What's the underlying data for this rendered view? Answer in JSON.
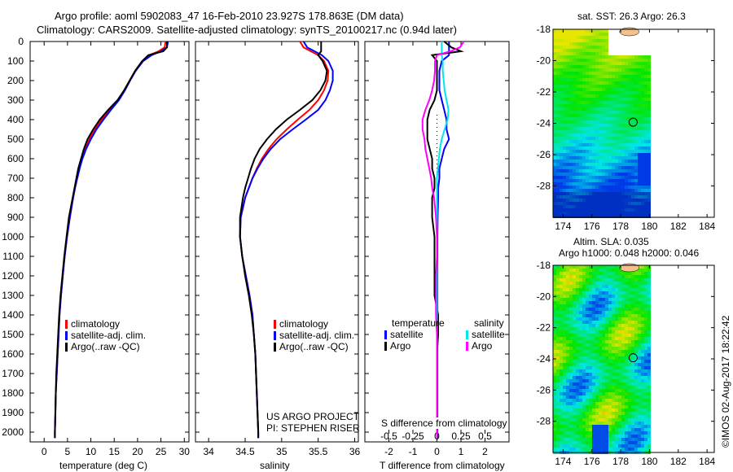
{
  "title": {
    "line1": "Argo profile: aoml 5902083_47 16-Feb-2010 23.927S 178.863E (DM data)",
    "line2": "Climatology: CARS2009. Satellite-adjusted climatology: synTS_20100217.nc (0.94d later)"
  },
  "colors": {
    "climatology": "#ff0000",
    "satellite": "#0000ff",
    "argo": "#000000",
    "sal_satellite": "#00e5ee",
    "sal_argo": "#ff00ff"
  },
  "legend_profile": [
    "climatology",
    "satellite-adj. clim.",
    "Argo(..raw -QC)"
  ],
  "legend_diff": {
    "temperature": "temperature",
    "salinity": "salinity",
    "satellite": "satellite",
    "argo": "Argo"
  },
  "project": {
    "line1": "US ARGO PROJECT",
    "line2": "PI: STEPHEN RISER"
  },
  "copyright": "©IMOS 02-Aug-2017 18:22:42",
  "chart_data": [
    {
      "type": "line",
      "title": "",
      "xlabel": "temperature (deg C)",
      "ylabel": "",
      "xlim": [
        -3,
        31
      ],
      "ylim": [
        2050,
        0
      ],
      "xticks": [
        "0",
        "5",
        "10",
        "15",
        "20",
        "25",
        "30"
      ],
      "yticks": [
        "0",
        "100",
        "200",
        "300",
        "400",
        "500",
        "600",
        "700",
        "800",
        "900",
        "1000",
        "1100",
        "1200",
        "1300",
        "1400",
        "1500",
        "1600",
        "1700",
        "1800",
        "1900",
        "2000"
      ],
      "depth": [
        0,
        30,
        50,
        70,
        100,
        150,
        200,
        250,
        300,
        350,
        400,
        450,
        500,
        550,
        600,
        650,
        700,
        750,
        800,
        900,
        1000,
        1100,
        1200,
        1300,
        1400,
        1500,
        1600,
        1700,
        1800,
        1900,
        2000,
        2030
      ],
      "series": [
        {
          "name": "climatology",
          "values": [
            26.0,
            25.8,
            24.5,
            22.5,
            21.0,
            19.5,
            18.3,
            17.2,
            15.8,
            14.0,
            12.3,
            10.9,
            9.7,
            8.8,
            8.1,
            7.5,
            7.0,
            6.6,
            6.2,
            5.5,
            4.9,
            4.4,
            4.0,
            3.6,
            3.3,
            3.1,
            2.9,
            2.7,
            2.5,
            2.4,
            2.3,
            2.3
          ]
        },
        {
          "name": "satellite-adj. clim.",
          "values": [
            26.5,
            26.3,
            25.0,
            23.0,
            21.2,
            19.6,
            18.4,
            17.3,
            16.0,
            14.3,
            12.7,
            11.2,
            10.0,
            9.0,
            8.2,
            7.6,
            7.1,
            6.6,
            6.2,
            5.5,
            4.9,
            4.4,
            4.0,
            3.6,
            3.3,
            3.1,
            2.9,
            2.7,
            2.5,
            2.4,
            2.3,
            2.3
          ]
        },
        {
          "name": "Argo(..raw -QC)",
          "values": [
            26.3,
            26.3,
            25.5,
            22.3,
            21.0,
            19.5,
            18.3,
            17.1,
            15.7,
            13.7,
            11.9,
            10.5,
            9.3,
            8.5,
            7.9,
            7.3,
            6.9,
            6.5,
            6.1,
            5.3,
            4.8,
            4.3,
            3.9,
            3.5,
            3.2,
            3.0,
            2.8,
            2.6,
            2.5,
            2.4,
            2.3,
            2.3
          ]
        }
      ]
    },
    {
      "type": "line",
      "title": "",
      "xlabel": "salinity",
      "ylabel": "",
      "xlim": [
        33.82,
        36.05
      ],
      "ylim": [
        2050,
        0
      ],
      "xticks": [
        "34",
        "34.5",
        "35",
        "35.5",
        "36"
      ],
      "depth": [
        0,
        30,
        50,
        70,
        100,
        150,
        200,
        250,
        300,
        350,
        400,
        450,
        500,
        550,
        600,
        650,
        700,
        750,
        800,
        900,
        1000,
        1100,
        1200,
        1300,
        1400,
        1500,
        1600,
        1700,
        1800,
        1900,
        2000,
        2030
      ],
      "series": [
        {
          "name": "climatology",
          "values": [
            35.25,
            35.3,
            35.4,
            35.5,
            35.58,
            35.64,
            35.63,
            35.58,
            35.5,
            35.38,
            35.22,
            35.07,
            34.93,
            34.82,
            34.73,
            34.66,
            34.6,
            34.55,
            34.5,
            34.44,
            34.43,
            34.46,
            34.51,
            34.56,
            34.6,
            34.62,
            34.64,
            34.65,
            34.66,
            34.67,
            34.68,
            34.68
          ]
        },
        {
          "name": "satellite-adj. clim.",
          "values": [
            35.3,
            35.35,
            35.45,
            35.55,
            35.64,
            35.7,
            35.7,
            35.66,
            35.6,
            35.5,
            35.33,
            35.15,
            34.98,
            34.85,
            34.75,
            34.67,
            34.6,
            34.55,
            34.5,
            34.44,
            34.43,
            34.46,
            34.51,
            34.56,
            34.6,
            34.62,
            34.64,
            34.65,
            34.66,
            34.67,
            34.68,
            34.68
          ]
        },
        {
          "name": "Argo(..raw -QC)",
          "values": [
            35.54,
            35.54,
            35.54,
            35.5,
            35.56,
            35.62,
            35.6,
            35.53,
            35.42,
            35.25,
            35.07,
            34.92,
            34.8,
            34.7,
            34.63,
            34.58,
            34.54,
            34.5,
            34.47,
            34.43,
            34.43,
            34.46,
            34.5,
            34.55,
            34.59,
            34.62,
            34.64,
            34.65,
            34.66,
            34.67,
            34.68,
            34.68
          ]
        }
      ]
    },
    {
      "type": "line",
      "title": "",
      "xlabel": "T difference from climatology",
      "x2label": "S difference from climatology",
      "xlim": [
        -3,
        3
      ],
      "ylim": [
        2050,
        0
      ],
      "xticks": [
        "-2",
        "-1",
        "0",
        "1",
        "2"
      ],
      "x2ticks": [
        "-0.5",
        "-0.25",
        "0",
        "0.25",
        "0.5"
      ],
      "depth": [
        0,
        30,
        50,
        70,
        100,
        150,
        200,
        250,
        300,
        350,
        400,
        450,
        500,
        550,
        600,
        650,
        700,
        750,
        800,
        900,
        1000,
        1100,
        1200,
        1300,
        1400,
        1500,
        1600,
        1700,
        1800,
        1900,
        2000,
        2030
      ],
      "series": [
        {
          "name": "temperature satellite",
          "values": [
            0.5,
            0.5,
            0.5,
            0.5,
            0.2,
            0.1,
            0.1,
            0.1,
            0.2,
            0.3,
            0.4,
            0.4,
            0.5,
            0.3,
            0.2,
            0.1,
            0.1,
            0.05,
            0.05,
            0.03,
            0.02,
            0.02,
            0.02,
            0.02,
            0.02,
            0.02,
            0.02,
            0.02,
            0.02,
            0.02,
            0.02,
            0.02
          ]
        },
        {
          "name": "temperature Argo",
          "values": [
            0.3,
            0.6,
            1.0,
            -0.2,
            0.0,
            0.0,
            0.0,
            0.0,
            -0.1,
            -0.3,
            -0.4,
            -0.4,
            -0.4,
            -0.3,
            -0.2,
            -0.2,
            -0.1,
            -0.1,
            -0.2,
            -0.2,
            -0.1,
            -0.1,
            -0.1,
            -0.1,
            0.05,
            0.05,
            0.0,
            0.0,
            0.0,
            0.0,
            0.0,
            0.0
          ]
        },
        {
          "name": "salinity satellite",
          "values": [
            0.05,
            0.05,
            0.05,
            0.05,
            0.06,
            0.06,
            0.07,
            0.08,
            0.1,
            0.12,
            0.11,
            0.08,
            0.05,
            0.03,
            0.02,
            0.01,
            0.0,
            0.0,
            0.0,
            0.0,
            0.0,
            0.0,
            0.0,
            0.0,
            0.0,
            0.0,
            0.0,
            0.0,
            0.0,
            0.0,
            0.0,
            0.0
          ]
        },
        {
          "name": "salinity Argo",
          "values": [
            0.28,
            0.24,
            0.14,
            0.0,
            -0.02,
            -0.02,
            -0.03,
            -0.05,
            -0.08,
            -0.12,
            -0.15,
            -0.15,
            -0.13,
            -0.12,
            -0.1,
            -0.08,
            -0.06,
            -0.05,
            -0.03,
            -0.01,
            0.0,
            0.0,
            -0.01,
            -0.01,
            -0.01,
            0.0,
            0.0,
            0.0,
            0.0,
            0.0,
            0.0,
            0.0
          ]
        }
      ]
    },
    {
      "type": "heatmap",
      "title": "sat. SST: 26.3 Argo: 26.3",
      "xlim": [
        173.3,
        184.5
      ],
      "ylim": [
        -30,
        -18
      ],
      "xticks": [
        "174",
        "176",
        "178",
        "180",
        "182",
        "184"
      ],
      "yticks": [
        "-18",
        "-20",
        "-22",
        "-24",
        "-26",
        "-28"
      ],
      "marker": {
        "lon": 178.863,
        "lat": -23.927
      }
    },
    {
      "type": "heatmap",
      "title": "Altim. SLA: 0.035",
      "subtitle": "Argo h1000: 0.048 h2000: 0.046",
      "xlim": [
        173.3,
        184.5
      ],
      "ylim": [
        -30,
        -18
      ],
      "xticks": [
        "174",
        "176",
        "178",
        "180",
        "182",
        "184"
      ],
      "yticks": [
        "-18",
        "-20",
        "-22",
        "-24",
        "-26",
        "-28"
      ],
      "marker": {
        "lon": 178.863,
        "lat": -23.927
      }
    }
  ]
}
